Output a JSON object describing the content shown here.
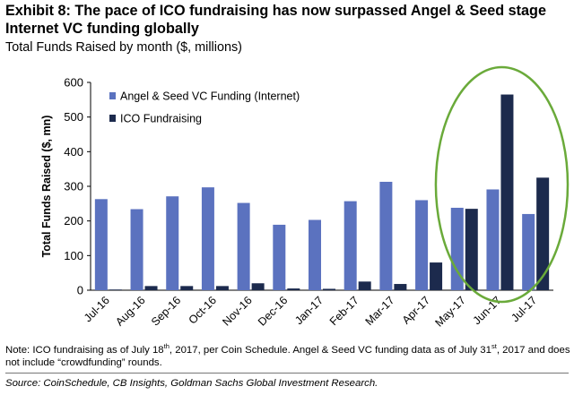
{
  "header": {
    "title": "Exhibit 8: The pace of ICO fundraising has now surpassed Angel & Seed stage Internet VC funding globally",
    "subtitle": "Total Funds Raised by month ($, millions)"
  },
  "chart_data": {
    "type": "bar",
    "categories": [
      "Jul-16",
      "Aug-16",
      "Sep-16",
      "Oct-16",
      "Nov-16",
      "Dec-16",
      "Jan-17",
      "Feb-17",
      "Mar-17",
      "Apr-17",
      "May-17",
      "Jun-17",
      "Jul-17"
    ],
    "series": [
      {
        "name": "Angel & Seed VC Funding (Internet)",
        "color": "#5b72bf",
        "values": [
          263,
          234,
          271,
          297,
          252,
          189,
          203,
          257,
          313,
          260,
          238,
          291,
          220
        ]
      },
      {
        "name": "ICO Fundraising",
        "color": "#1c2a4d",
        "values": [
          2,
          12,
          12,
          12,
          20,
          5,
          4,
          25,
          18,
          80,
          235,
          565,
          325
        ]
      }
    ],
    "title": "",
    "xlabel": "",
    "ylabel": "Total Funds Raised ($, mn)",
    "ylim": [
      0,
      600
    ],
    "yticks": [
      0,
      100,
      200,
      300,
      400,
      500,
      600
    ],
    "grid": false,
    "legend": "top-left",
    "highlight": {
      "shape": "ellipse",
      "color": "#6aaa3a",
      "categories": [
        "May-17",
        "Jun-17",
        "Jul-17"
      ]
    }
  },
  "footer": {
    "note_part1": "Note: ICO fundraising as of July 18",
    "note_sup1": "th",
    "note_part2": ", 2017, per Coin Schedule. Angel & Seed VC funding data as of July 31",
    "note_sup2": "st",
    "note_part3": ", 2017 and does not include “crowdfunding” rounds.",
    "source": "Source: CoinSchedule, CB Insights, Goldman Sachs Global Investment Research."
  }
}
